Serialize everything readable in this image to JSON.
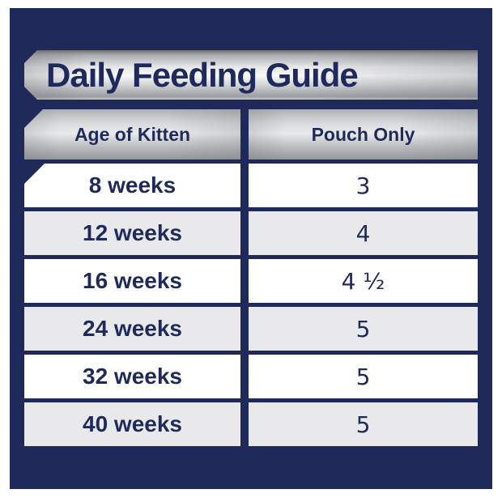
{
  "chart_data": {
    "type": "table",
    "title": "Daily Feeding Guide",
    "columns": [
      "Age of Kitten",
      "Pouch Only"
    ],
    "rows": [
      {
        "age": "8 weeks",
        "pouch": "3"
      },
      {
        "age": "12 weeks",
        "pouch": "4"
      },
      {
        "age": "16 weeks",
        "pouch": "4 ½"
      },
      {
        "age": "24 weeks",
        "pouch": "5"
      },
      {
        "age": "32 weeks",
        "pouch": "5"
      },
      {
        "age": "40 weeks",
        "pouch": "5"
      }
    ]
  },
  "colors": {
    "navy": "#1f2a5a",
    "text_navy": "#1e2a5c",
    "row_white": "#ffffff",
    "row_alt": "#e9e9eb",
    "silver_light": "#f7f7f8",
    "silver_dark": "#94979b"
  }
}
